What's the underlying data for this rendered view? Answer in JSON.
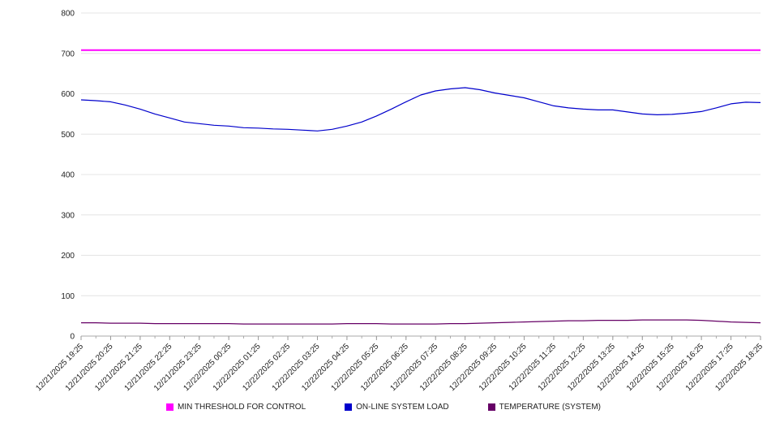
{
  "chart_data": {
    "type": "line",
    "title": "",
    "xlabel": "",
    "ylabel": "",
    "ylim": [
      0,
      800
    ],
    "grid": true,
    "legend_position": "bottom",
    "y_ticks": [
      0,
      100,
      200,
      300,
      400,
      500,
      600,
      700,
      800
    ],
    "x_labels": [
      "12/21/2025 19:25",
      "12/21/2025 20:25",
      "12/21/2025 21:25",
      "12/21/2025 22:25",
      "12/21/2025 23:25",
      "12/22/2025 00:25",
      "12/22/2025 01:25",
      "12/22/2025 02:25",
      "12/22/2025 03:25",
      "12/22/2025 04:25",
      "12/22/2025 05:25",
      "12/22/2025 06:25",
      "12/22/2025 07:25",
      "12/22/2025 08:25",
      "12/22/2025 09:25",
      "12/22/2025 10:25",
      "12/22/2025 11:25",
      "12/22/2025 12:25",
      "12/22/2025 13:25",
      "12/22/2025 14:25",
      "12/22/2025 15:25",
      "12/22/2025 16:25",
      "12/22/2025 17:25",
      "12/22/2025 18:25"
    ],
    "series": [
      {
        "name": "MIN THRESHOLD FOR CONTROL",
        "color": "#ff00ff",
        "constant": 708
      },
      {
        "name": "ON-LINE SYSTEM LOAD",
        "color": "#0000cc",
        "values": [
          585,
          583,
          580,
          572,
          562,
          550,
          540,
          530,
          526,
          522,
          520,
          516,
          515,
          513,
          512,
          510,
          508,
          512,
          520,
          530,
          545,
          562,
          580,
          597,
          607,
          612,
          615,
          610,
          602,
          596,
          590,
          580,
          570,
          565,
          562,
          560,
          560,
          555,
          550,
          548,
          549,
          552,
          556,
          565,
          575,
          579,
          578
        ]
      },
      {
        "name": "TEMPERATURE (SYSTEM)",
        "color": "#660066",
        "values": [
          33,
          33,
          32,
          32,
          32,
          31,
          31,
          31,
          31,
          31,
          31,
          30,
          30,
          30,
          30,
          30,
          30,
          30,
          31,
          31,
          31,
          30,
          30,
          30,
          30,
          31,
          31,
          32,
          33,
          34,
          35,
          36,
          37,
          38,
          38,
          39,
          39,
          39,
          40,
          40,
          40,
          40,
          39,
          37,
          35,
          34,
          33
        ]
      }
    ]
  }
}
